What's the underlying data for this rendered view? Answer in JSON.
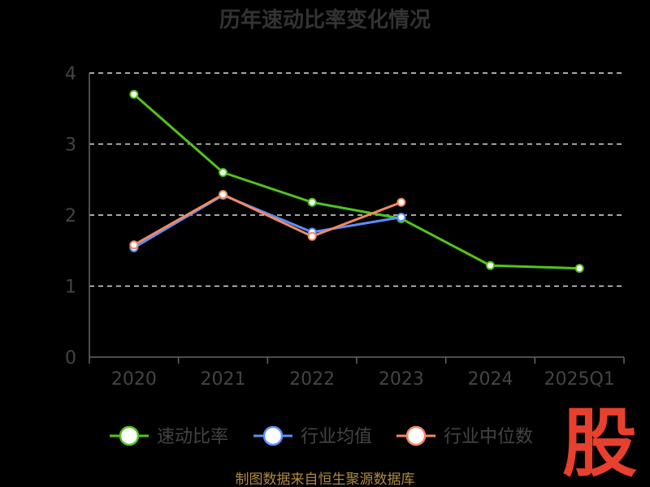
{
  "chart_data": {
    "type": "line",
    "title": "历年速动比率变化情况",
    "categories": [
      "2020",
      "2021",
      "2022",
      "2023",
      "2024",
      "2025Q1"
    ],
    "ylim": [
      0,
      4
    ],
    "yticks": [
      "0",
      "1",
      "2",
      "3",
      "4"
    ],
    "grid": true,
    "legend_position": "bottom",
    "series": [
      {
        "name": "速动比率",
        "color": "#52c41a",
        "values": [
          3.7,
          2.6,
          2.18,
          1.95,
          1.29,
          1.25
        ]
      },
      {
        "name": "行业均值",
        "color": "#5b8ff9",
        "values": [
          1.54,
          2.28,
          1.76,
          1.97,
          null,
          null
        ]
      },
      {
        "name": "行业中位数",
        "color": "#f4895f",
        "values": [
          1.58,
          2.29,
          1.7,
          2.18,
          null,
          null
        ]
      }
    ]
  },
  "source_text": "制图数据来自恒生聚源数据库",
  "logo_text": "股"
}
